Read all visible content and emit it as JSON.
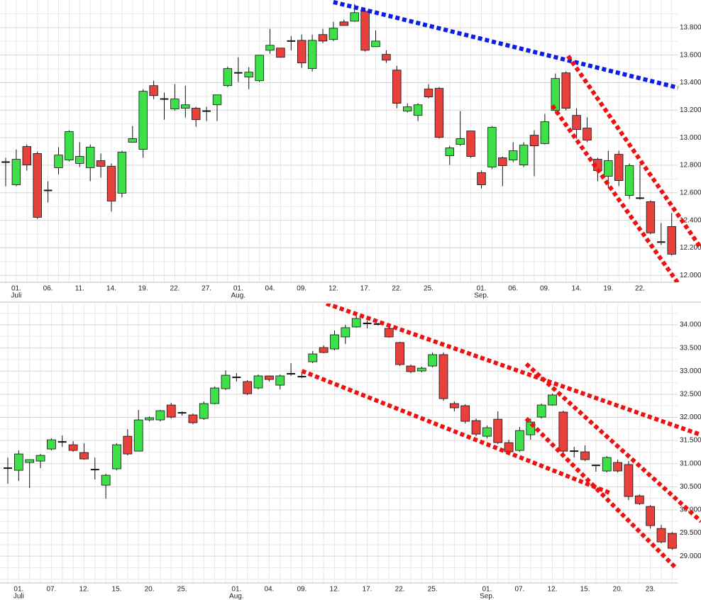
{
  "chart_data": [
    {
      "type": "candlestick",
      "up_color": "#3ee04a",
      "down_color": "#e8413c",
      "grid": true,
      "categories": [
        null,
        "01.",
        null,
        null,
        "06.",
        null,
        null,
        "11.",
        null,
        null,
        "14.",
        null,
        null,
        "19.",
        null,
        null,
        "22.",
        null,
        null,
        "27.",
        null,
        null,
        "01.",
        null,
        null,
        "04.",
        null,
        null,
        "09.",
        null,
        null,
        "12.",
        null,
        null,
        "17.",
        null,
        null,
        "22.",
        null,
        null,
        "25.",
        null,
        null,
        null,
        null,
        "01.",
        null,
        null,
        "06.",
        null,
        null,
        "09.",
        null,
        null,
        "14.",
        null,
        null,
        "19.",
        null,
        null,
        "22.",
        null,
        null,
        null
      ],
      "category_groups": [
        null,
        "Juli",
        null,
        null,
        null,
        null,
        null,
        null,
        null,
        null,
        null,
        null,
        null,
        null,
        null,
        null,
        null,
        null,
        null,
        null,
        null,
        null,
        "Aug.",
        null,
        null,
        null,
        null,
        null,
        null,
        null,
        null,
        null,
        null,
        null,
        null,
        null,
        null,
        null,
        null,
        null,
        null,
        null,
        null,
        null,
        null,
        "Sep.",
        null,
        null,
        null,
        null,
        null,
        null,
        null,
        null,
        null,
        null,
        null,
        null,
        null,
        null,
        null,
        null,
        null,
        null
      ],
      "open": [
        12.823,
        12.658,
        12.936,
        12.885,
        12.617,
        12.782,
        12.838,
        12.813,
        12.782,
        12.833,
        12.792,
        12.597,
        12.967,
        12.915,
        13.378,
        13.281,
        13.209,
        13.214,
        13.214,
        13.193,
        13.239,
        13.378,
        13.471,
        13.44,
        13.414,
        13.635,
        13.651,
        13.702,
        13.707,
        13.502,
        13.749,
        13.713,
        13.841,
        13.846,
        13.918,
        13.661,
        13.605,
        13.491,
        13.193,
        13.162,
        13.353,
        13.358,
        12.869,
        12.951,
        13.049,
        12.746,
        12.787,
        12.854,
        12.838,
        12.802,
        13.018,
        12.957,
        13.198,
        13.471,
        13.162,
        13.07,
        12.843,
        12.72,
        12.879,
        12.581,
        12.561,
        12.535,
        12.242,
        12.355
      ],
      "high": [
        12.854,
        12.915,
        12.951,
        12.9,
        12.684,
        12.931,
        13.054,
        12.967,
        12.951,
        12.885,
        12.813,
        12.905,
        13.085,
        13.353,
        13.414,
        13.327,
        13.389,
        13.378,
        13.224,
        13.224,
        13.311,
        13.517,
        13.584,
        13.512,
        13.599,
        13.79,
        13.651,
        13.738,
        13.749,
        13.749,
        13.79,
        13.841,
        13.857,
        13.97,
        13.934,
        13.779,
        13.635,
        13.522,
        13.25,
        13.25,
        13.389,
        13.368,
        12.941,
        13.193,
        13.049,
        12.761,
        13.085,
        12.864,
        12.967,
        12.967,
        13.054,
        13.173,
        13.466,
        13.481,
        13.214,
        13.147,
        12.854,
        12.905,
        12.905,
        12.813,
        12.807,
        12.545,
        12.38,
        12.453
      ],
      "low": [
        12.648,
        12.648,
        12.761,
        12.411,
        12.53,
        12.735,
        12.828,
        12.787,
        12.684,
        12.71,
        12.463,
        12.566,
        12.967,
        12.854,
        13.28,
        13.131,
        13.198,
        13.147,
        13.08,
        13.121,
        13.121,
        13.368,
        13.404,
        13.353,
        13.404,
        13.61,
        13.584,
        13.635,
        13.507,
        13.481,
        13.687,
        13.702,
        13.815,
        13.841,
        13.625,
        13.661,
        13.543,
        13.214,
        13.183,
        13.121,
        13.286,
        12.993,
        12.802,
        12.941,
        12.854,
        12.632,
        12.772,
        12.648,
        12.823,
        12.787,
        12.72,
        12.951,
        13.183,
        13.198,
        12.993,
        12.967,
        12.684,
        12.632,
        12.648,
        12.555,
        12.55,
        12.298,
        12.221,
        12.144
      ],
      "close": [
        12.823,
        12.843,
        12.802,
        12.422,
        12.617,
        12.874,
        13.044,
        12.864,
        12.931,
        12.792,
        12.54,
        12.895,
        12.993,
        13.337,
        13.306,
        13.281,
        13.281,
        13.239,
        13.131,
        13.193,
        13.311,
        13.502,
        13.471,
        13.476,
        13.599,
        13.671,
        13.584,
        13.702,
        13.543,
        13.707,
        13.702,
        13.795,
        13.815,
        13.908,
        13.635,
        13.702,
        13.563,
        13.25,
        13.224,
        13.239,
        13.296,
        13.003,
        12.926,
        12.993,
        12.864,
        12.658,
        13.075,
        12.797,
        12.905,
        12.946,
        12.941,
        13.116,
        13.43,
        13.214,
        13.059,
        12.982,
        12.761,
        12.833,
        12.689,
        12.797,
        12.561,
        12.309,
        12.242,
        12.154
      ],
      "ylim": [
        11.95,
        14.0
      ],
      "yticks": [
        {
          "value": 12.0,
          "label": "12.000"
        },
        {
          "value": 12.2,
          "label": "12.200"
        },
        {
          "value": 12.4,
          "label": "12.400"
        },
        {
          "value": 12.6,
          "label": "12.600"
        },
        {
          "value": 12.8,
          "label": "12.800"
        },
        {
          "value": 13.0,
          "label": "13.000"
        },
        {
          "value": 13.2,
          "label": "13.200"
        },
        {
          "value": 13.4,
          "label": "13.400"
        },
        {
          "value": 13.6,
          "label": "13.600"
        },
        {
          "value": 13.8,
          "label": "13.800"
        }
      ],
      "minor_yticks": [
        12.1,
        12.3,
        12.5,
        12.7,
        12.9,
        13.1,
        13.3,
        13.5,
        13.7,
        13.9
      ],
      "trendlines": [
        {
          "color": "#0a1ee8",
          "points": [
            [
              31.0,
              13.985
            ],
            [
              63.6,
              13.363
            ]
          ]
        },
        {
          "color": "#ee1111",
          "points": [
            [
              53.2,
              13.594
            ],
            [
              65.8,
              12.195
            ]
          ]
        },
        {
          "color": "#ee1111",
          "points": [
            [
              51.7,
              13.234
            ],
            [
              64.6,
              11.835
            ]
          ]
        }
      ]
    },
    {
      "type": "candlestick",
      "up_color": "#3ee04a",
      "down_color": "#e8413c",
      "grid": true,
      "categories": [
        null,
        "01.",
        null,
        null,
        "07.",
        null,
        null,
        "12.",
        null,
        null,
        "15.",
        null,
        null,
        "20.",
        null,
        null,
        "25.",
        null,
        null,
        null,
        null,
        "01.",
        null,
        null,
        "04.",
        null,
        null,
        "09.",
        null,
        null,
        "12.",
        null,
        null,
        "17.",
        null,
        null,
        "22.",
        null,
        null,
        "25.",
        null,
        null,
        null,
        null,
        "01.",
        null,
        null,
        "07.",
        null,
        null,
        "12.",
        null,
        null,
        "15.",
        null,
        null,
        "20.",
        null,
        null,
        "23.",
        null,
        null
      ],
      "category_groups": [
        null,
        "Juli",
        null,
        null,
        null,
        null,
        null,
        null,
        null,
        null,
        null,
        null,
        null,
        null,
        null,
        null,
        null,
        null,
        null,
        null,
        null,
        "Aug.",
        null,
        null,
        null,
        null,
        null,
        null,
        null,
        null,
        null,
        null,
        null,
        null,
        null,
        null,
        null,
        null,
        null,
        null,
        null,
        null,
        null,
        null,
        "Sep.",
        null,
        null,
        null,
        null,
        null,
        null,
        null,
        null,
        null,
        null,
        null,
        null,
        null,
        null,
        null,
        null,
        null
      ],
      "open": [
        30.902,
        30.856,
        31.025,
        31.055,
        31.316,
        31.469,
        31.408,
        31.239,
        30.871,
        30.534,
        30.887,
        31.592,
        31.27,
        31.945,
        31.945,
        32.267,
        32.098,
        32.052,
        31.976,
        32.298,
        32.62,
        32.865,
        32.773,
        32.635,
        32.896,
        32.696,
        32.942,
        32.88,
        33.202,
        33.509,
        33.479,
        33.739,
        33.954,
        34.031,
        34.015,
        33.923,
        33.617,
        33.11,
        33.003,
        33.11,
        33.356,
        32.298,
        32.252,
        31.93,
        31.592,
        31.96,
        31.454,
        31.285,
        31.623,
        32.006,
        32.267,
        32.114,
        31.27,
        31.255,
        30.963,
        30.841,
        31.025,
        30.979,
        30.304,
        30.074,
        29.598,
        29.491
      ],
      "high": [
        31.132,
        31.285,
        31.09,
        31.209,
        31.546,
        31.607,
        31.485,
        31.439,
        31.132,
        30.779,
        31.439,
        31.745,
        32.16,
        32.02,
        32.16,
        32.313,
        32.129,
        32.083,
        32.344,
        32.666,
        33.018,
        32.957,
        32.804,
        32.926,
        32.896,
        32.926,
        33.172,
        32.988,
        33.433,
        33.555,
        33.877,
        34.0,
        34.276,
        34.092,
        34.046,
        33.969,
        33.632,
        33.141,
        33.095,
        33.402,
        33.402,
        32.344,
        32.282,
        31.976,
        31.822,
        32.129,
        31.515,
        31.791,
        31.976,
        32.298,
        32.512,
        32.144,
        31.362,
        31.393,
        30.979,
        31.163,
        31.086,
        31.055,
        30.334,
        30.104,
        29.675,
        29.522
      ],
      "low": [
        30.564,
        30.626,
        30.473,
        30.902,
        31.285,
        31.362,
        31.255,
        31.086,
        30.657,
        30.243,
        30.856,
        31.178,
        31.27,
        31.914,
        31.914,
        31.976,
        32.037,
        31.853,
        31.945,
        32.282,
        32.589,
        32.773,
        32.482,
        32.604,
        32.773,
        32.604,
        32.896,
        32.85,
        33.172,
        33.387,
        33.448,
        33.586,
        33.939,
        33.923,
        33.985,
        33.724,
        33.11,
        32.957,
        32.973,
        33.08,
        32.359,
        32.129,
        31.868,
        31.592,
        31.546,
        31.423,
        31.209,
        31.255,
        31.515,
        31.976,
        32.252,
        31.209,
        31.132,
        31.055,
        30.825,
        30.81,
        30.81,
        30.212,
        30.104,
        29.598,
        29.276,
        29.138
      ],
      "close": [
        30.902,
        31.209,
        31.086,
        31.178,
        31.515,
        31.469,
        31.285,
        31.101,
        30.871,
        30.749,
        31.408,
        31.209,
        31.945,
        31.991,
        32.144,
        32.006,
        32.098,
        31.884,
        32.298,
        32.635,
        32.911,
        32.865,
        32.512,
        32.896,
        32.819,
        32.896,
        32.942,
        32.88,
        33.371,
        33.402,
        33.785,
        33.939,
        34.138,
        34.031,
        34.015,
        33.739,
        33.141,
        32.988,
        33.064,
        33.356,
        32.405,
        32.206,
        31.914,
        31.638,
        31.776,
        31.454,
        31.255,
        31.715,
        31.899,
        32.267,
        32.482,
        31.27,
        31.27,
        31.086,
        30.963,
        31.132,
        30.841,
        30.289,
        30.135,
        29.66,
        29.307,
        29.169
      ],
      "ylim": [
        28.42,
        34.46
      ],
      "yticks": [
        {
          "value": 29.0,
          "label": "29.000"
        },
        {
          "value": 29.5,
          "label": "29.500"
        },
        {
          "value": 30.0,
          "label": "30.000"
        },
        {
          "value": 30.5,
          "label": "30.500"
        },
        {
          "value": 31.0,
          "label": "31.000"
        },
        {
          "value": 31.5,
          "label": "31.500"
        },
        {
          "value": 32.0,
          "label": "32.000"
        },
        {
          "value": 32.5,
          "label": "32.500"
        },
        {
          "value": 33.0,
          "label": "33.000"
        },
        {
          "value": 33.5,
          "label": "33.500"
        },
        {
          "value": 34.0,
          "label": "34.000"
        }
      ],
      "minor_yticks": [
        28.5,
        28.75,
        29.25,
        29.75,
        30.25,
        30.75,
        31.25,
        31.75,
        32.25,
        32.75,
        33.25,
        33.75,
        34.25
      ],
      "trendlines": [
        {
          "color": "#ee1111",
          "points": [
            [
              29.25,
              34.46
            ],
            [
              63.45,
              31.638
            ]
          ]
        },
        {
          "color": "#ee1111",
          "points": [
            [
              27.0,
              33.003
            ],
            [
              55.3,
              30.365
            ]
          ]
        },
        {
          "color": "#ee1111",
          "points": [
            [
              47.6,
              33.156
            ],
            [
              63.65,
              29.752
            ]
          ]
        },
        {
          "color": "#ee1111",
          "points": [
            [
              47.6,
              31.976
            ],
            [
              61.3,
              28.755
            ]
          ]
        }
      ]
    }
  ]
}
